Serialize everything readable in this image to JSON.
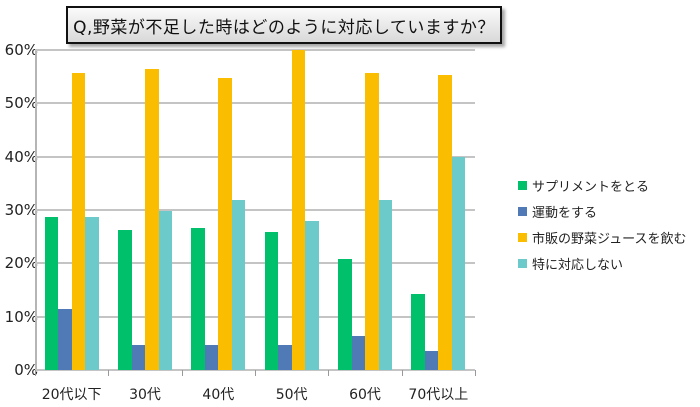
{
  "chart_data": {
    "type": "bar",
    "title": "Q,野菜が不足した時はどのように対応していますか？",
    "xlabel": "",
    "ylabel": "",
    "ylim": [
      0,
      60
    ],
    "yticks": [
      "0%",
      "10%",
      "20%",
      "30%",
      "40%",
      "50%",
      "60%"
    ],
    "grid": true,
    "legend_position": "right",
    "categories": [
      "20代以下",
      "30代",
      "40代",
      "50代",
      "60代",
      "70代以上"
    ],
    "series": [
      {
        "name": "サプリメントをとる",
        "color": "#00c06b",
        "values": [
          28.7,
          26.2,
          26.6,
          25.8,
          20.9,
          14.3
        ]
      },
      {
        "name": "運動をする",
        "color": "#4f7ab6",
        "values": [
          11.4,
          4.7,
          4.7,
          4.7,
          6.4,
          3.6
        ]
      },
      {
        "name": "市販の野菜ジュースを飲む",
        "color": "#fbbd00",
        "values": [
          55.7,
          56.5,
          54.8,
          60.0,
          55.7,
          55.4
        ]
      },
      {
        "name": "特に対応しない",
        "color": "#6ccacb",
        "values": [
          28.7,
          29.8,
          31.8,
          27.9,
          31.9,
          40.0
        ]
      }
    ]
  }
}
